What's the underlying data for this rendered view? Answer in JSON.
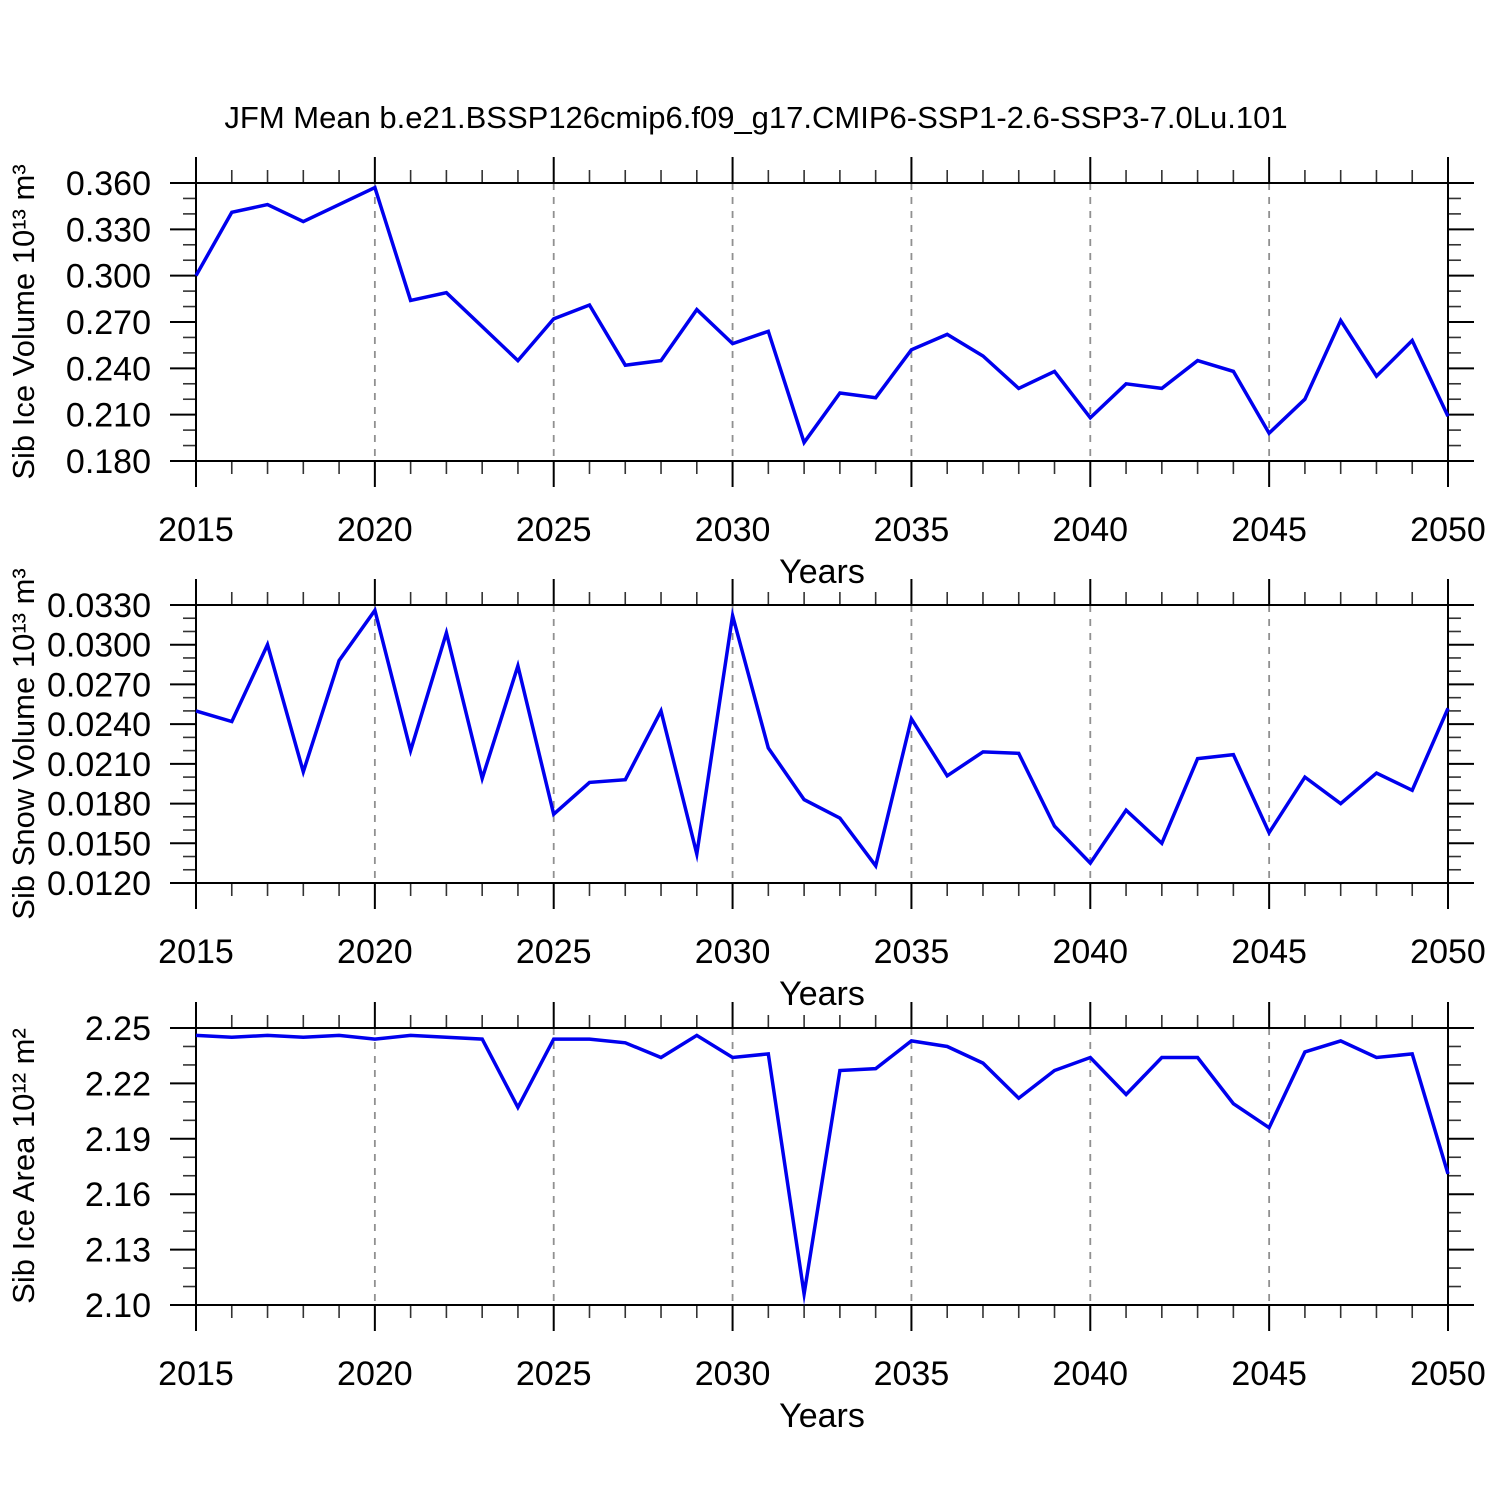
{
  "title": "JFM Mean b.e21.BSSP126cmip6.f09_g17.CMIP6-SSP1-2.6-SSP3-7.0Lu.101",
  "colors": {
    "line": "#0000ee",
    "axis": "#000000",
    "grid": "#909090",
    "minor_tick": "#333333",
    "text": "#000000",
    "background": "#ffffff"
  },
  "chart_data": [
    {
      "type": "line",
      "title": "JFM Mean b.e21.BSSP126cmip6.f09_g17.CMIP6-SSP1-2.6-SSP3-7.0Lu.101",
      "xlabel": "Years",
      "ylabel": "Sib Ice Volume 10¹³ m³",
      "xlim": [
        2015,
        2050
      ],
      "ylim": [
        0.18,
        0.36
      ],
      "xtick_labels": [
        "2015",
        "2020",
        "2025",
        "2030",
        "2035",
        "2040",
        "2045",
        "2050"
      ],
      "ytick_labels": [
        "0.360",
        "0.330",
        "0.300",
        "0.270",
        "0.240",
        "0.210",
        "0.180"
      ],
      "yminor_step": 0.01,
      "xminor_step": 1,
      "grid_x": [
        2020,
        2025,
        2030,
        2035,
        2040,
        2045
      ],
      "grid_on": "vertical-dashed",
      "legend": "none",
      "x": [
        2015,
        2016,
        2017,
        2018,
        2019,
        2020,
        2021,
        2022,
        2023,
        2024,
        2025,
        2026,
        2027,
        2028,
        2029,
        2030,
        2031,
        2032,
        2033,
        2034,
        2035,
        2036,
        2037,
        2038,
        2039,
        2040,
        2041,
        2042,
        2043,
        2044,
        2045,
        2046,
        2047,
        2048,
        2049,
        2050
      ],
      "values": [
        0.3,
        0.341,
        0.346,
        0.335,
        0.346,
        0.357,
        0.284,
        0.289,
        0.267,
        0.245,
        0.272,
        0.281,
        0.242,
        0.245,
        0.278,
        0.256,
        0.264,
        0.192,
        0.224,
        0.221,
        0.252,
        0.262,
        0.248,
        0.227,
        0.238,
        0.208,
        0.23,
        0.227,
        0.245,
        0.238,
        0.198,
        0.22,
        0.271,
        0.235,
        0.258,
        0.209
      ]
    },
    {
      "type": "line",
      "title": "",
      "xlabel": "Years",
      "ylabel": "Sib Snow Volume 10¹³ m³",
      "xlim": [
        2015,
        2050
      ],
      "ylim": [
        0.012,
        0.033
      ],
      "xtick_labels": [
        "2015",
        "2020",
        "2025",
        "2030",
        "2035",
        "2040",
        "2045",
        "2050"
      ],
      "ytick_labels": [
        "0.0330",
        "0.0300",
        "0.0270",
        "0.0240",
        "0.0210",
        "0.0180",
        "0.0150",
        "0.0120"
      ],
      "yminor_step": 0.001,
      "xminor_step": 1,
      "grid_x": [
        2020,
        2025,
        2030,
        2035,
        2040,
        2045
      ],
      "grid_on": "vertical-dashed",
      "legend": "none",
      "x": [
        2015,
        2016,
        2017,
        2018,
        2019,
        2020,
        2021,
        2022,
        2023,
        2024,
        2025,
        2026,
        2027,
        2028,
        2029,
        2030,
        2031,
        2032,
        2033,
        2034,
        2035,
        2036,
        2037,
        2038,
        2039,
        2040,
        2041,
        2042,
        2043,
        2044,
        2045,
        2046,
        2047,
        2048,
        2049,
        2050
      ],
      "values": [
        0.025,
        0.0242,
        0.03,
        0.0204,
        0.0288,
        0.0326,
        0.022,
        0.0309,
        0.0199,
        0.0284,
        0.0172,
        0.0196,
        0.0198,
        0.025,
        0.0142,
        0.0322,
        0.0222,
        0.0183,
        0.0169,
        0.0133,
        0.0244,
        0.0201,
        0.0219,
        0.0218,
        0.0163,
        0.0135,
        0.0175,
        0.015,
        0.0214,
        0.0217,
        0.0158,
        0.02,
        0.018,
        0.0203,
        0.019,
        0.0252
      ]
    },
    {
      "type": "line",
      "title": "",
      "xlabel": "Years",
      "ylabel": "Sib Ice Area 10¹² m²",
      "xlim": [
        2015,
        2050
      ],
      "ylim": [
        2.1,
        2.25
      ],
      "xtick_labels": [
        "2015",
        "2020",
        "2025",
        "2030",
        "2035",
        "2040",
        "2045",
        "2050"
      ],
      "ytick_labels": [
        "2.25",
        "2.22",
        "2.19",
        "2.16",
        "2.13",
        "2.10"
      ],
      "yminor_step": 0.01,
      "xminor_step": 1,
      "grid_x": [
        2020,
        2025,
        2030,
        2035,
        2040,
        2045
      ],
      "grid_on": "vertical-dashed",
      "legend": "none",
      "x": [
        2015,
        2016,
        2017,
        2018,
        2019,
        2020,
        2021,
        2022,
        2023,
        2024,
        2025,
        2026,
        2027,
        2028,
        2029,
        2030,
        2031,
        2032,
        2033,
        2034,
        2035,
        2036,
        2037,
        2038,
        2039,
        2040,
        2041,
        2042,
        2043,
        2044,
        2045,
        2046,
        2047,
        2048,
        2049,
        2050
      ],
      "values": [
        2.246,
        2.245,
        2.246,
        2.245,
        2.246,
        2.244,
        2.246,
        2.245,
        2.244,
        2.207,
        2.244,
        2.244,
        2.242,
        2.234,
        2.246,
        2.234,
        2.236,
        2.106,
        2.227,
        2.228,
        2.243,
        2.24,
        2.231,
        2.212,
        2.227,
        2.234,
        2.214,
        2.234,
        2.234,
        2.209,
        2.196,
        2.237,
        2.243,
        2.234,
        2.236,
        2.171
      ]
    }
  ]
}
